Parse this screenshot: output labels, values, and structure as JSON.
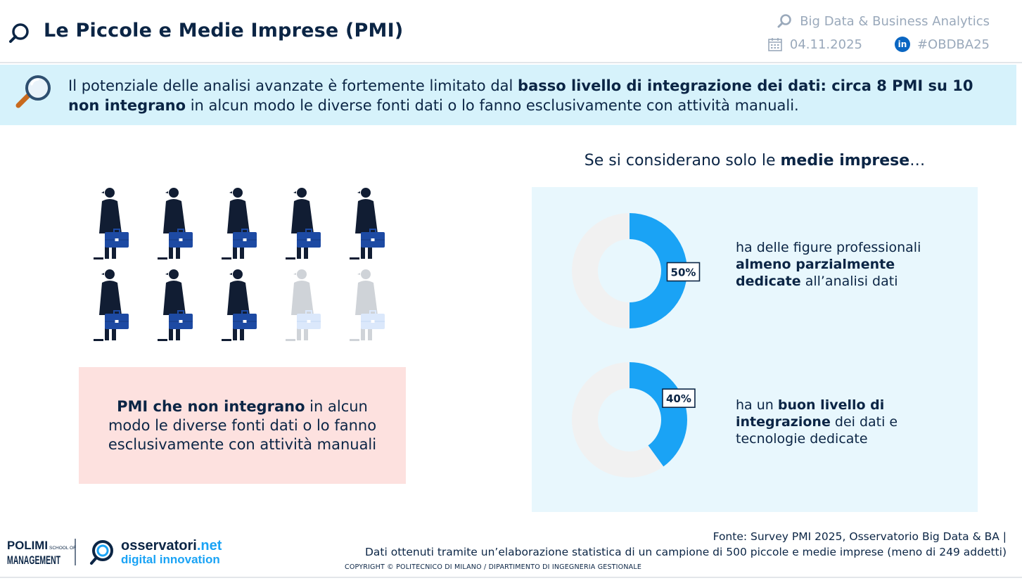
{
  "header": {
    "title": "Le Piccole e Medie Imprese (PMI)",
    "event": "Big Data & Business Analytics",
    "date": "04.11.2025",
    "hashtag": "#OBDBA25",
    "social_icon": "linkedin-icon"
  },
  "banner": {
    "text_1": "Il potenziale delle analisi avanzate è fortemente limitato dal ",
    "bold_1": "basso livello di integrazione dei dati: circa 8 PMI su 10 non integrano",
    "text_2": " in alcun modo le diverse fonti dati o lo fanno esclusivamente con attività manuali."
  },
  "left": {
    "pictogram": {
      "total": 10,
      "highlighted": 8
    },
    "box_bold": "PMI che non integrano",
    "box_text": " in alcun modo le diverse fonti dati o lo fanno esclusivamente con attività manuali"
  },
  "right": {
    "intro_1": "Se si considerano solo le ",
    "intro_bold": "medie imprese",
    "intro_2": "…",
    "donut1": {
      "pre": "ha delle figure professionali ",
      "bold": "almeno parzialmente dedicate",
      "post": " all’analisi dati"
    },
    "donut2": {
      "pre": "ha un ",
      "bold": "buon livello di integrazione",
      "post": " dei dati e tecnologie dedicate"
    }
  },
  "chart_data": [
    {
      "type": "pie",
      "title": "",
      "slices": [
        {
          "label": "50%",
          "value": 50
        },
        {
          "value": 50
        }
      ],
      "colors": [
        "#1aa3f5",
        "#f1f1f1"
      ]
    },
    {
      "type": "pie",
      "title": "",
      "slices": [
        {
          "label": "40%",
          "value": 40
        },
        {
          "value": 60
        }
      ],
      "colors": [
        "#1aa3f5",
        "#f1f1f1"
      ]
    }
  ],
  "footer": {
    "polimi_line1": "POLIMI",
    "polimi_school": "SCHOOL OF",
    "polimi_line2": "MANAGEMENT",
    "osservatori_1": "osservatori",
    "osservatori_2": ".net",
    "osservatori_sub": "digital innovation",
    "source_1": "Fonte: Survey PMI 2025, Osservatorio Big Data & BA |",
    "source_2": "Dati ottenuti tramite un’elaborazione statistica di un campione di 500 piccole e medie imprese (meno di 249 addetti)",
    "copyright": "COPYRIGHT © POLITECNICO DI MILANO / DIPARTIMENTO DI INGEGNERIA GESTIONALE"
  },
  "colors": {
    "navy": "#0b2545",
    "accent": "#1aa3f5",
    "banner_bg": "#d6f2fb",
    "pink": "#fde1df",
    "panel": "#e8f7fd"
  }
}
